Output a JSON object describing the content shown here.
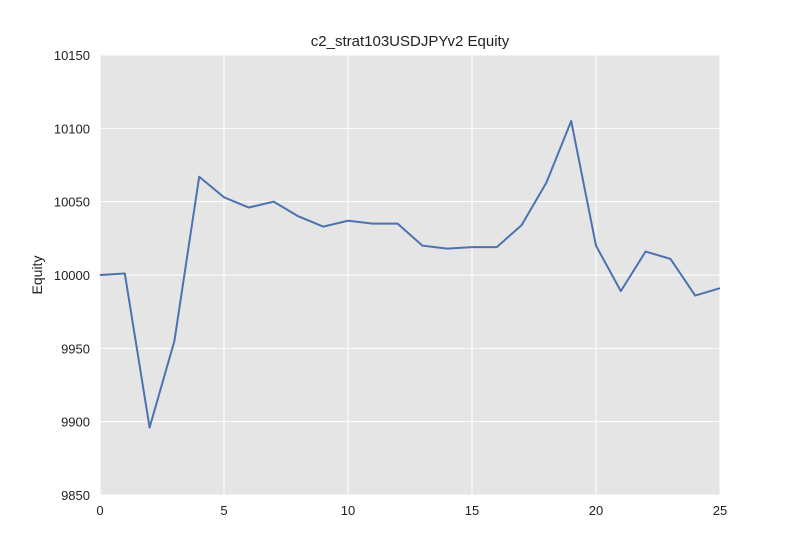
{
  "chart_data": {
    "type": "line",
    "title": "c2_strat103USDJPYv2 Equity",
    "xlabel": "",
    "ylabel": "Equity",
    "xlim": [
      0,
      25
    ],
    "ylim": [
      9850,
      10150
    ],
    "xticks": [
      0,
      5,
      10,
      15,
      20,
      25
    ],
    "yticks": [
      9850,
      9900,
      9950,
      10000,
      10050,
      10100,
      10150
    ],
    "grid": true,
    "background": "#e5e5e5",
    "grid_color": "#ffffff",
    "series": [
      {
        "color": "#4c72b0",
        "x": [
          0,
          1,
          2,
          3,
          4,
          5,
          6,
          7,
          8,
          9,
          10,
          11,
          12,
          13,
          14,
          15,
          16,
          17,
          18,
          19,
          20,
          21,
          22,
          23,
          24,
          25
        ],
        "y": [
          10000,
          10001,
          9896,
          9955,
          10067,
          10053,
          10046,
          10050,
          10040,
          10033,
          10037,
          10035,
          10035,
          10020,
          10018,
          10019,
          10019,
          10034,
          10063,
          10105,
          10020,
          9989,
          10016,
          10011,
          9986,
          9991
        ]
      }
    ]
  }
}
